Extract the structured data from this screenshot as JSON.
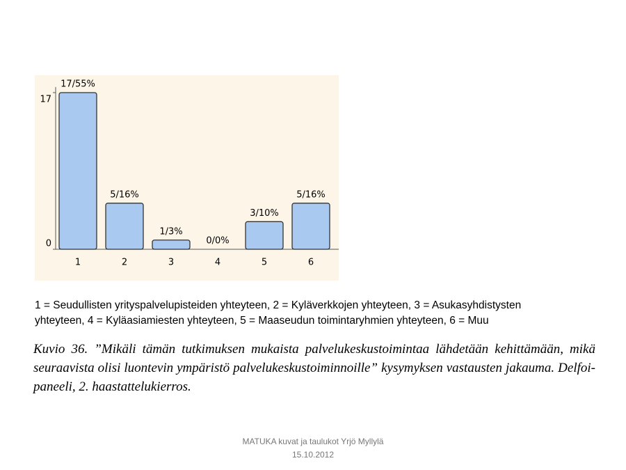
{
  "chart_data": {
    "type": "bar",
    "categories": [
      "1",
      "2",
      "3",
      "4",
      "5",
      "6"
    ],
    "values": [
      17,
      5,
      1,
      0,
      3,
      5
    ],
    "value_labels": [
      "17/55%",
      "5/16%",
      "1/3%",
      "0/0%",
      "3/10%",
      "5/16%"
    ],
    "color": "#a9c9f1",
    "ylim": [
      0,
      17
    ],
    "yticks": [
      0,
      17
    ]
  },
  "note": [
    "1 = Seudullisten yrityspalvelupisteiden yhteyteen, 2 = Kyläverkkojen yhteyteen, 3 = Asukasyhdistysten",
    "yhteyteen, 4 = Kyläasiamiesten yhteyteen, 5 = Maaseudun toimintaryhmien yhteyteen, 6 = Muu"
  ],
  "caption": "Kuvio 36. ”Mikäli tämän tutkimuksen mukaista palvelukeskustoimintaa lähdetään kehittämään, mikä seuraavista olisi luontevin ympäristö palvelukeskustoiminnoille” kysymyksen vastausten jakauma. Delfoi-paneeli, 2. haastattelukierros.",
  "footer": [
    "MATUKA kuvat ja taulukot Yrjö Myllylä",
    "15.10.2012"
  ]
}
